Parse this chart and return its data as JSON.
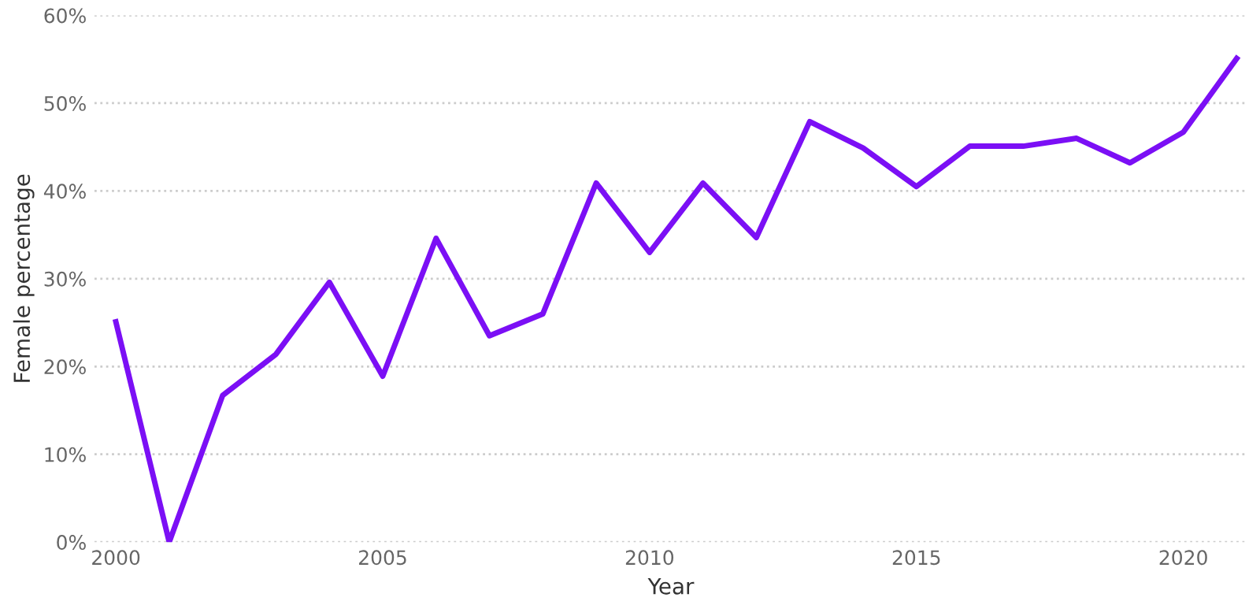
{
  "chart_data": {
    "type": "line",
    "xlabel": "Year",
    "ylabel": "Female percentage",
    "x": [
      2000,
      2001,
      2002,
      2003,
      2004,
      2005,
      2006,
      2007,
      2008,
      2009,
      2010,
      2011,
      2012,
      2013,
      2014,
      2015,
      2016,
      2017,
      2018,
      2019,
      2020,
      2021
    ],
    "series": [
      {
        "color": "#7b0ff5",
        "values": [
          25.1,
          0,
          16.7,
          21.4,
          29.6,
          18.9,
          34.6,
          23.5,
          26.0,
          40.9,
          33.0,
          40.9,
          34.7,
          47.9,
          44.9,
          40.5,
          45.1,
          45.1,
          46.0,
          43.2,
          46.7,
          55.1
        ]
      }
    ],
    "xlim": [
      1999.6,
      2021.2
    ],
    "xticks": [
      2000,
      2005,
      2010,
      2015,
      2020
    ],
    "ylim": [
      0,
      60
    ],
    "yticks": [
      {
        "value": 0,
        "label": "0%"
      },
      {
        "value": 10,
        "label": "10%"
      },
      {
        "value": 20,
        "label": "20%"
      },
      {
        "value": 30,
        "label": "30%"
      },
      {
        "value": 40,
        "label": "40%"
      },
      {
        "value": 50,
        "label": "50%"
      },
      {
        "value": 60,
        "label": "60%"
      }
    ],
    "grid": "y",
    "marker": "none",
    "line_style": "solid",
    "legend": false
  }
}
